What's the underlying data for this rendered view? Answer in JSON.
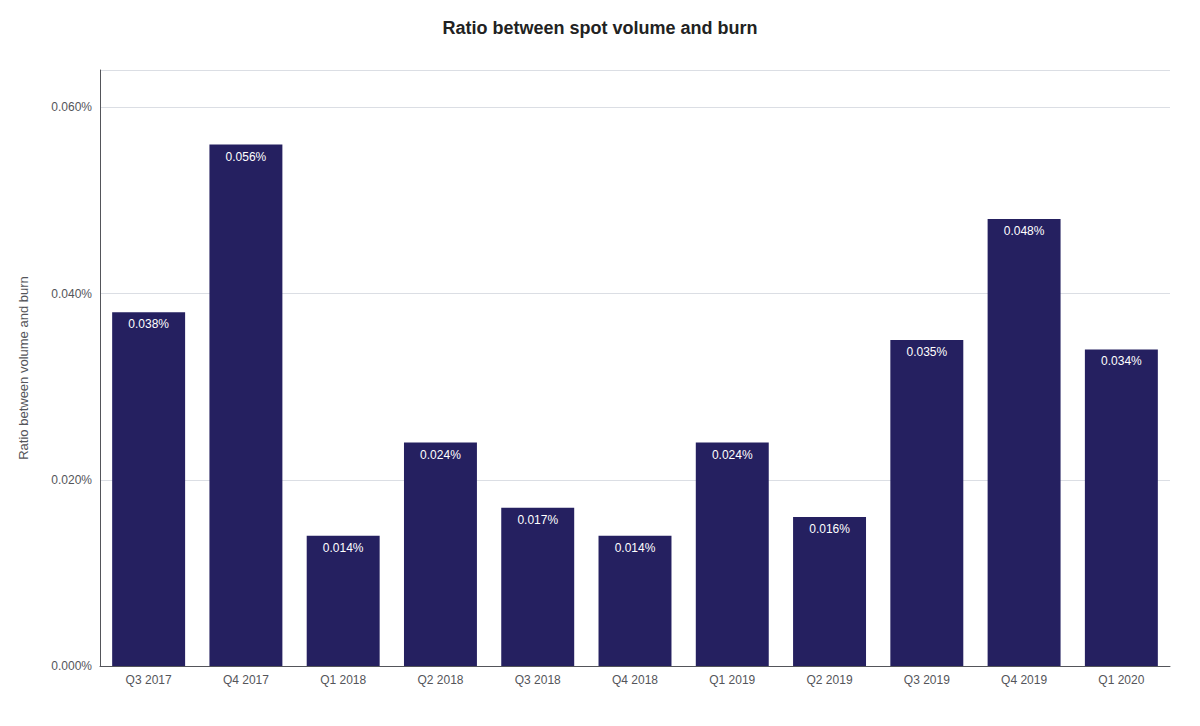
{
  "chart_data": {
    "type": "bar",
    "title": "Ratio between spot volume and burn",
    "ylabel": "Ratio between volume and burn",
    "categories": [
      "Q3 2017",
      "Q4 2017",
      "Q1 2018",
      "Q2 2018",
      "Q3 2018",
      "Q4 2018",
      "Q1 2019",
      "Q2 2019",
      "Q3 2019",
      "Q4 2019",
      "Q1 2020"
    ],
    "values": [
      0.00038,
      0.00056,
      0.00014,
      0.00024,
      0.00017,
      0.00014,
      0.00024,
      0.00016,
      0.00035,
      0.00048,
      0.00034
    ],
    "value_labels": [
      "0.038%",
      "0.056%",
      "0.014%",
      "0.024%",
      "0.017%",
      "0.014%",
      "0.024%",
      "0.016%",
      "0.035%",
      "0.048%",
      "0.034%"
    ],
    "color": "#252060",
    "ylim": [
      0,
      0.00064
    ],
    "yticks": [
      {
        "value": 0.0,
        "label": "0.000%"
      },
      {
        "value": 0.0002,
        "label": "0.020%"
      },
      {
        "value": 0.0004,
        "label": "0.040%"
      },
      {
        "value": 0.0006,
        "label": "0.060%"
      }
    ],
    "grid": true,
    "data_labels": true
  }
}
